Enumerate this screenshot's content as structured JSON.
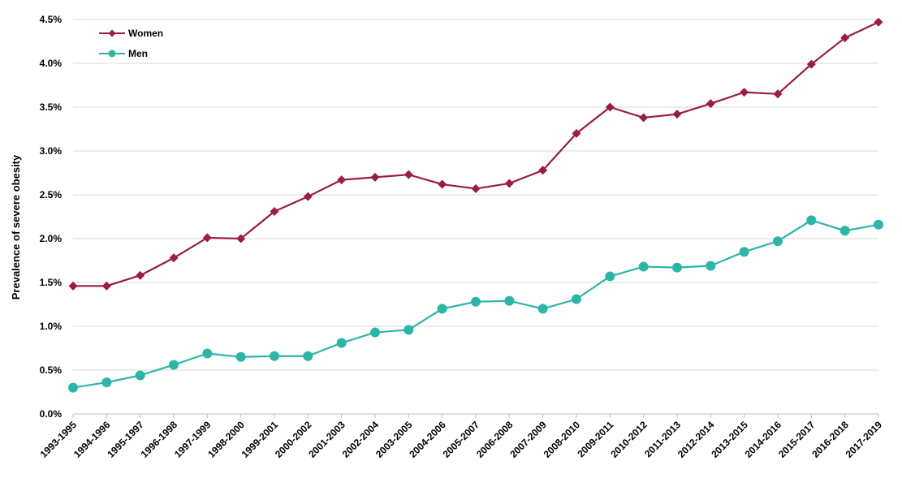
{
  "chart_data": {
    "type": "line",
    "title": "",
    "xlabel": "",
    "ylabel": "Prevalence of severe obesity",
    "ylim": [
      0,
      4.5
    ],
    "ytick_step": 0.5,
    "grid": true,
    "legend_position": "top-left",
    "categories": [
      "1993-1995",
      "1994-1996",
      "1995-1997",
      "1996-1998",
      "1997-1999",
      "1998-2000",
      "1999-2001",
      "2000-2002",
      "2001-2003",
      "2002-2004",
      "2003-2005",
      "2004-2006",
      "2005-2007",
      "2006-2008",
      "2007-2009",
      "2008-2010",
      "2009-2011",
      "2010-2012",
      "2011-2013",
      "2012-2014",
      "2013-2015",
      "2014-2016",
      "2015-2017",
      "2016-2018",
      "2017-2019"
    ],
    "series": [
      {
        "name": "Women",
        "color": "#9b1b4a",
        "marker": "diamond",
        "values": [
          1.46,
          1.46,
          1.58,
          1.78,
          2.01,
          2.0,
          2.31,
          2.48,
          2.67,
          2.7,
          2.73,
          2.62,
          2.57,
          2.63,
          2.78,
          3.2,
          3.5,
          3.38,
          3.42,
          3.54,
          3.67,
          3.65,
          3.99,
          4.29,
          4.47
        ]
      },
      {
        "name": "Men",
        "color": "#2db5a8",
        "marker": "circle",
        "values": [
          0.3,
          0.36,
          0.44,
          0.56,
          0.69,
          0.65,
          0.66,
          0.66,
          0.81,
          0.93,
          0.96,
          1.2,
          1.28,
          1.29,
          1.2,
          1.31,
          1.57,
          1.68,
          1.67,
          1.69,
          1.85,
          1.97,
          2.21,
          2.09,
          2.16
        ]
      }
    ]
  }
}
